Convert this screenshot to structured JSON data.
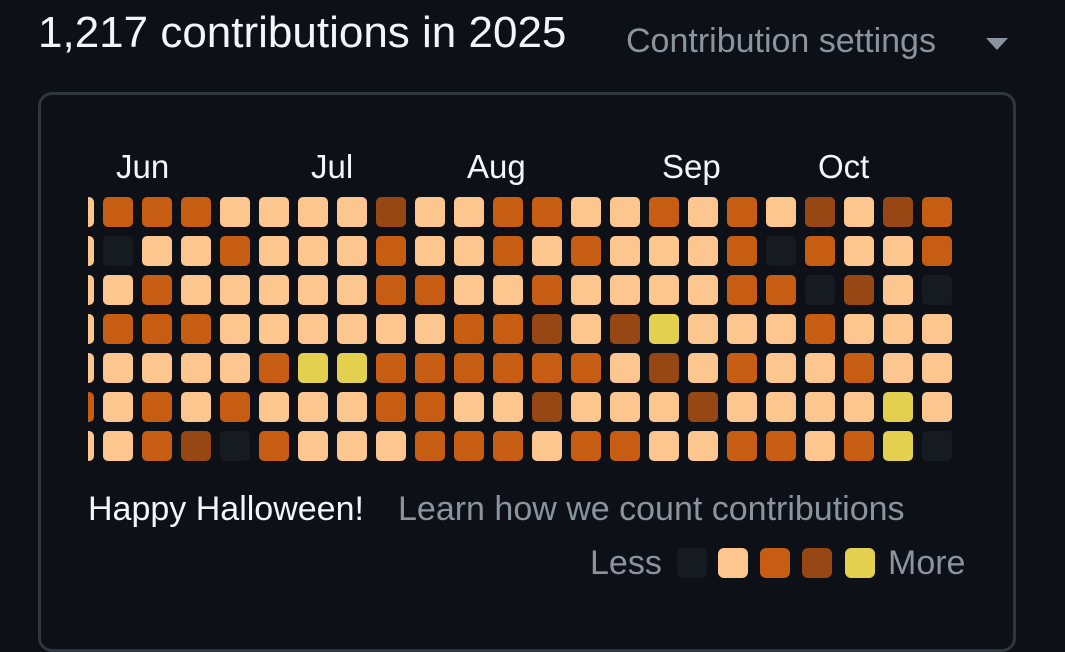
{
  "header": {
    "title": "1,217 contributions in 2025",
    "settings_label": "Contribution settings"
  },
  "graph": {
    "months": [
      "Jun",
      "Jul",
      "Aug",
      "Sep",
      "Oct"
    ],
    "colors": {
      "0": "#161b22",
      "1": "#fdc68e",
      "2": "#c65d12",
      "3": "#964713",
      "4": "#e3d04f"
    },
    "weeks": [
      [
        1,
        1,
        1,
        1,
        1,
        2,
        1
      ],
      [
        2,
        0,
        1,
        2,
        1,
        1,
        1
      ],
      [
        2,
        1,
        2,
        2,
        1,
        2,
        2
      ],
      [
        2,
        1,
        1,
        2,
        1,
        1,
        3
      ],
      [
        1,
        2,
        1,
        1,
        1,
        2,
        0
      ],
      [
        1,
        1,
        1,
        1,
        2,
        1,
        2
      ],
      [
        1,
        1,
        1,
        1,
        4,
        1,
        1
      ],
      [
        1,
        1,
        1,
        1,
        4,
        1,
        1
      ],
      [
        3,
        2,
        2,
        1,
        2,
        2,
        1
      ],
      [
        1,
        1,
        2,
        1,
        2,
        2,
        2
      ],
      [
        1,
        1,
        1,
        2,
        2,
        1,
        2
      ],
      [
        2,
        2,
        1,
        2,
        2,
        1,
        2
      ],
      [
        2,
        1,
        2,
        3,
        2,
        3,
        1
      ],
      [
        1,
        2,
        1,
        1,
        2,
        1,
        2
      ],
      [
        1,
        1,
        1,
        3,
        1,
        1,
        2
      ],
      [
        2,
        1,
        1,
        4,
        3,
        1,
        1
      ],
      [
        1,
        1,
        1,
        1,
        1,
        3,
        1
      ],
      [
        2,
        2,
        2,
        1,
        2,
        1,
        2
      ],
      [
        1,
        0,
        2,
        1,
        1,
        1,
        2
      ],
      [
        3,
        2,
        0,
        2,
        1,
        1,
        1
      ],
      [
        1,
        1,
        3,
        1,
        2,
        1,
        2
      ],
      [
        3,
        1,
        1,
        1,
        1,
        4,
        4
      ],
      [
        2,
        2,
        0,
        1,
        1,
        1,
        0
      ]
    ]
  },
  "footer": {
    "message": "Happy Halloween!",
    "learn_link": "Learn how we count contributions"
  },
  "legend": {
    "less_label": "Less",
    "more_label": "More",
    "levels": [
      0,
      1,
      2,
      3,
      4
    ]
  }
}
